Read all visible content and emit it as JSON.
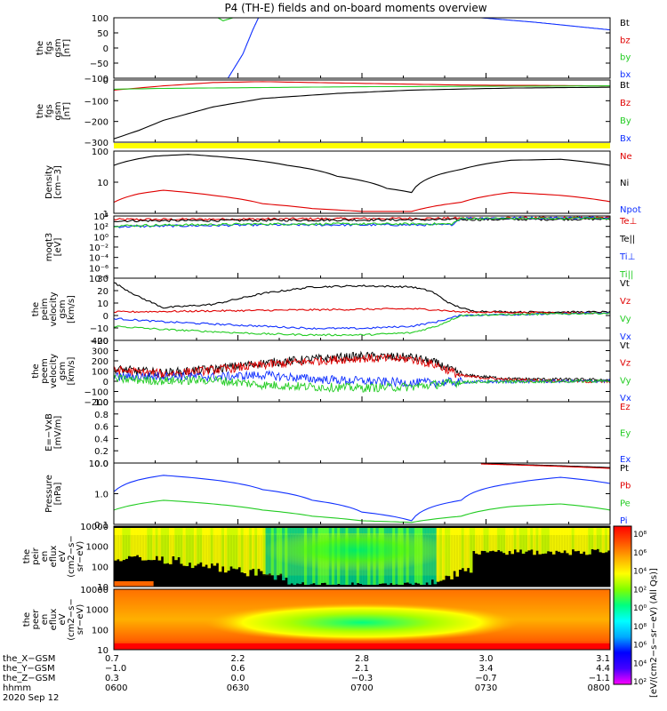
{
  "title": "P4 (TH-E) fields and on-board moments overview",
  "colors": {
    "black": "#000000",
    "red": "#e00000",
    "green": "#22cc22",
    "blue": "#1030ff",
    "yellow": "#ffff00",
    "cmap": [
      "#ff00ff",
      "#4400ff",
      "#0000ff",
      "#00aaff",
      "#00ffff",
      "#00ff80",
      "#80ff00",
      "#ffff00",
      "#ffaa00",
      "#ff5000",
      "#ff0000"
    ]
  },
  "chart_data": {
    "type": "line",
    "x_ticks": [
      "0600",
      "0630",
      "0700",
      "0730",
      "0800"
    ],
    "panels": [
      {
        "id": "fgs_gsm",
        "ylabel": [
          "the",
          "fgs",
          "gsm",
          "[nT]"
        ],
        "yticks": [
          "100",
          "50",
          "0",
          "−50",
          "−100"
        ],
        "legend": [
          {
            "text": "Bt",
            "color": "black"
          },
          {
            "text": "bz",
            "color": "red"
          },
          {
            "text": "by",
            "color": "green"
          },
          {
            "text": "bx",
            "color": "blue"
          }
        ],
        "ylim": [
          -100,
          100
        ],
        "log": false,
        "series": [
          {
            "color": "green",
            "x": [
              0.18,
              0.2,
              0.22,
              0.24,
              0.26
            ],
            "y": [
              140,
              110,
              90,
              100,
              130
            ]
          },
          {
            "color": "blue",
            "x": [
              0.23,
              0.26,
              0.28,
              0.3
            ],
            "y": [
              -100,
              -20,
              60,
              130
            ]
          },
          {
            "color": "blue",
            "x": [
              0.74,
              0.85,
              1.0
            ],
            "y": [
              100,
              85,
              60
            ]
          }
        ]
      },
      {
        "id": "fgs_gsm2",
        "ylabel": [
          "the",
          "fgs",
          "gsm",
          "[nT]"
        ],
        "yticks": [
          "0",
          "−100",
          "−200",
          "−300"
        ],
        "legend": [
          {
            "text": "Bt",
            "color": "black"
          },
          {
            "text": "Bz",
            "color": "red"
          },
          {
            "text": "By",
            "color": "green"
          },
          {
            "text": "Bx",
            "color": "blue"
          }
        ],
        "ylim": [
          -330,
          40
        ],
        "log": false,
        "series": [
          {
            "color": "black",
            "x": [
              0,
              0.05,
              0.1,
              0.2,
              0.3,
              0.45,
              0.6,
              0.8,
              1.0
            ],
            "y": [
              -310,
              -260,
              -200,
              -120,
              -70,
              -40,
              -20,
              -8,
              -3
            ]
          },
          {
            "color": "red",
            "x": [
              0,
              0.1,
              0.2,
              0.3,
              0.5,
              0.7,
              1.0
            ],
            "y": [
              -20,
              5,
              25,
              30,
              20,
              10,
              5
            ]
          },
          {
            "color": "green",
            "x": [
              0,
              0.1,
              0.3,
              0.5,
              0.7,
              1.0
            ],
            "y": [
              -15,
              -10,
              -5,
              0,
              2,
              5
            ]
          }
        ]
      },
      {
        "id": "density",
        "ylabel": [
          "Density",
          "[cm−3]"
        ],
        "yticks": [
          "100",
          "10",
          "1"
        ],
        "legend": [
          {
            "text": "Ne",
            "color": "red"
          },
          {
            "text": "Ni",
            "color": "black"
          },
          {
            "text": "Npot",
            "color": "blue"
          }
        ],
        "ylim": [
          0.5,
          250
        ],
        "log": true,
        "series": [
          {
            "color": "black",
            "x": [
              0,
              0.08,
              0.15,
              0.25,
              0.35,
              0.45,
              0.55,
              0.6,
              0.7,
              0.8,
              0.9,
              1.0
            ],
            "y": [
              60,
              150,
              180,
              120,
              60,
              20,
              6,
              4,
              40,
              100,
              110,
              60
            ]
          },
          {
            "color": "red",
            "x": [
              0,
              0.05,
              0.1,
              0.2,
              0.3,
              0.4,
              0.5,
              0.6,
              0.7,
              0.8,
              0.9,
              1.0
            ],
            "y": [
              1.5,
              3.5,
              5,
              3,
              1.3,
              0.8,
              0.6,
              0.6,
              1.5,
              4,
              3,
              1.6
            ]
          }
        ]
      },
      {
        "id": "moqt3",
        "ylabel": [
          "moqt3",
          "[eV]"
        ],
        "yticks": [
          "10⁴",
          "10²",
          "10⁰",
          "10⁻²",
          "10⁻⁴",
          "10⁻⁶",
          "10⁻⁸"
        ],
        "legend": [
          {
            "text": "Te⊥",
            "color": "red"
          },
          {
            "text": "Te||",
            "color": "black"
          },
          {
            "text": "Ti⊥",
            "color": "blue"
          },
          {
            "text": "Ti||",
            "color": "green"
          }
        ],
        "ylim": [
          -10,
          4
        ],
        "log": false,
        "series": [
          {
            "color": "red",
            "x": [
              0,
              1
            ],
            "y": [
              3.2,
              3.6
            ]
          },
          {
            "color": "black",
            "x": [
              0,
              1
            ],
            "y": [
              2.9,
              3.3
            ]
          },
          {
            "color": "blue",
            "x": [
              0,
              0.3,
              0.68,
              0.7,
              1.0
            ],
            "y": [
              1.6,
              2.0,
              2.0,
              3.5,
              3.6
            ]
          },
          {
            "color": "green",
            "x": [
              0,
              0.3,
              0.68,
              0.7,
              1.0
            ],
            "y": [
              1.8,
              2.2,
              2.2,
              3.4,
              3.5
            ]
          }
        ]
      },
      {
        "id": "peim_vel",
        "ylabel": [
          "the",
          "peim",
          "velocity",
          "gsm",
          "[km/s]"
        ],
        "yticks": [
          "30",
          "20",
          "10",
          "0",
          "−10",
          "−20"
        ],
        "legend": [
          {
            "text": "Vt",
            "color": "black"
          },
          {
            "text": "Vz",
            "color": "red"
          },
          {
            "text": "Vy",
            "color": "green"
          },
          {
            "text": "Vx",
            "color": "blue"
          }
        ],
        "ylim": [
          -25,
          32
        ],
        "log": false,
        "series": [
          {
            "color": "black",
            "x": [
              0,
              0.05,
              0.1,
              0.2,
              0.3,
              0.4,
              0.5,
              0.6,
              0.64,
              0.68,
              0.72,
              0.8,
              1.0
            ],
            "y": [
              28,
              15,
              5,
              8,
              18,
              24,
              25,
              24,
              20,
              8,
              2,
              1,
              1
            ]
          },
          {
            "color": "red",
            "x": [
              0,
              0.2,
              0.4,
              0.6,
              0.65,
              0.7,
              1.0
            ],
            "y": [
              1,
              2,
              3,
              4,
              3,
              1,
              0
            ]
          },
          {
            "color": "blue",
            "x": [
              0,
              0.1,
              0.2,
              0.3,
              0.4,
              0.5,
              0.6,
              0.65,
              0.7,
              1.0
            ],
            "y": [
              -5,
              -8,
              -10,
              -12,
              -14,
              -14,
              -12,
              -8,
              -2,
              0
            ]
          },
          {
            "color": "green",
            "x": [
              0,
              0.1,
              0.2,
              0.3,
              0.4,
              0.5,
              0.6,
              0.65,
              0.7,
              1.0
            ],
            "y": [
              -12,
              -15,
              -17,
              -19,
              -20,
              -20,
              -18,
              -12,
              -2,
              0
            ]
          }
        ]
      },
      {
        "id": "peem_vel",
        "ylabel": [
          "the",
          "peem",
          "velocity",
          "gsm",
          "[km/s]"
        ],
        "yticks": [
          "400",
          "300",
          "200",
          "100",
          "0",
          "−100",
          "−200"
        ],
        "legend": [
          {
            "text": "Vt",
            "color": "black"
          },
          {
            "text": "Vz",
            "color": "red"
          },
          {
            "text": "Vy",
            "color": "green"
          },
          {
            "text": "Vx",
            "color": "blue"
          }
        ],
        "ylim": [
          -210,
          410
        ],
        "log": false,
        "series": [
          {
            "color": "black",
            "x": [
              0,
              0.1,
              0.2,
              0.3,
              0.4,
              0.5,
              0.6,
              0.65,
              0.7,
              0.8,
              1.0
            ],
            "y": [
              120,
              80,
              120,
              180,
              220,
              250,
              240,
              180,
              60,
              20,
              10
            ]
          },
          {
            "color": "red",
            "x": [
              0,
              0.1,
              0.2,
              0.3,
              0.4,
              0.5,
              0.6,
              0.65,
              0.7,
              0.8,
              1.0
            ],
            "y": [
              110,
              70,
              110,
              160,
              200,
              230,
              220,
              160,
              50,
              10,
              -10
            ]
          },
          {
            "color": "blue",
            "x": [
              0,
              0.1,
              0.2,
              0.3,
              0.4,
              0.5,
              0.6,
              0.7,
              1.0
            ],
            "y": [
              40,
              50,
              40,
              60,
              20,
              0,
              -20,
              -10,
              0
            ]
          },
          {
            "color": "green",
            "x": [
              0,
              0.1,
              0.2,
              0.3,
              0.4,
              0.5,
              0.6,
              0.7,
              1.0
            ],
            "y": [
              20,
              0,
              10,
              -40,
              -60,
              -70,
              -60,
              -10,
              0
            ]
          }
        ]
      },
      {
        "id": "efield",
        "ylabel": [
          "E=−VxB",
          "[mV/m]"
        ],
        "yticks": [
          "1.0",
          "0.8",
          "0.6",
          "0.4",
          "0.2",
          "0.0"
        ],
        "legend": [
          {
            "text": "Ez",
            "color": "red"
          },
          {
            "text": "Ey",
            "color": "green"
          },
          {
            "text": "Ex",
            "color": "blue"
          }
        ],
        "ylim": [
          0,
          1
        ],
        "log": false,
        "series": []
      },
      {
        "id": "pressure",
        "ylabel": [
          "Pressure",
          "[nPa]"
        ],
        "yticks": [
          "10.0",
          "1.0",
          "0.1"
        ],
        "legend": [
          {
            "text": "Pt",
            "color": "black"
          },
          {
            "text": "Pb",
            "color": "red"
          },
          {
            "text": "Pe",
            "color": "green"
          },
          {
            "text": "Pi",
            "color": "blue"
          }
        ],
        "ylim": [
          0.02,
          20
        ],
        "log": true,
        "series": [
          {
            "color": "black",
            "x": [
              0.74,
              1.0
            ],
            "y": [
              19,
              12
            ]
          },
          {
            "color": "red",
            "x": [
              0.74,
              1.0
            ],
            "y": [
              18,
              11
            ]
          },
          {
            "color": "blue",
            "x": [
              0,
              0.05,
              0.1,
              0.2,
              0.3,
              0.4,
              0.5,
              0.6,
              0.7,
              0.8,
              0.9,
              1.0
            ],
            "y": [
              0.8,
              3,
              5,
              3,
              1,
              0.3,
              0.08,
              0.03,
              0.3,
              2,
              4,
              2
            ]
          },
          {
            "color": "green",
            "x": [
              0,
              0.05,
              0.1,
              0.2,
              0.3,
              0.4,
              0.5,
              0.6,
              0.7,
              0.8,
              0.9,
              1.0
            ],
            "y": [
              0.1,
              0.2,
              0.3,
              0.2,
              0.1,
              0.05,
              0.03,
              0.025,
              0.05,
              0.15,
              0.2,
              0.1
            ]
          }
        ]
      },
      {
        "id": "peir_eflux",
        "type": "heatmap",
        "ylabel": [
          "the",
          "peir",
          "en",
          "eflux",
          "eV",
          "(cm2−s−",
          "sr−eV)"
        ],
        "yticks": [
          "10000",
          "1000",
          "100",
          "10"
        ],
        "legend": []
      },
      {
        "id": "peer_eflux",
        "type": "heatmap",
        "ylabel": [
          "the",
          "peer",
          "en",
          "eflux",
          "eV",
          "(cm2−s−",
          "sr−eV)"
        ],
        "yticks": [
          "10000",
          "1000",
          "100",
          "10"
        ],
        "legend": []
      }
    ],
    "colorbar": {
      "ticks": [
        "10⁸",
        "10⁶",
        "10⁴",
        "10²",
        "10⁰",
        "10⁸",
        "10⁶",
        "10⁴",
        "10²"
      ],
      "label": "[eV/(cm2−s−sr−eV) (All Qs)]"
    },
    "ephemeris": {
      "labels": [
        "the_X−GSM",
        "the_Y−GSM",
        "the_Z−GSM",
        "hhmm",
        "2020 Sep 12"
      ],
      "rows": [
        [
          "0.7",
          "2.2",
          "2.8",
          "3.0",
          "3.1"
        ],
        [
          "−1.0",
          "0.6",
          "2.1",
          "3.4",
          "4.4"
        ],
        [
          "0.3",
          "0.0",
          "−0.3",
          "−0.7",
          "−1.1"
        ],
        [
          "0600",
          "0630",
          "0700",
          "0730",
          "0800"
        ]
      ]
    }
  }
}
